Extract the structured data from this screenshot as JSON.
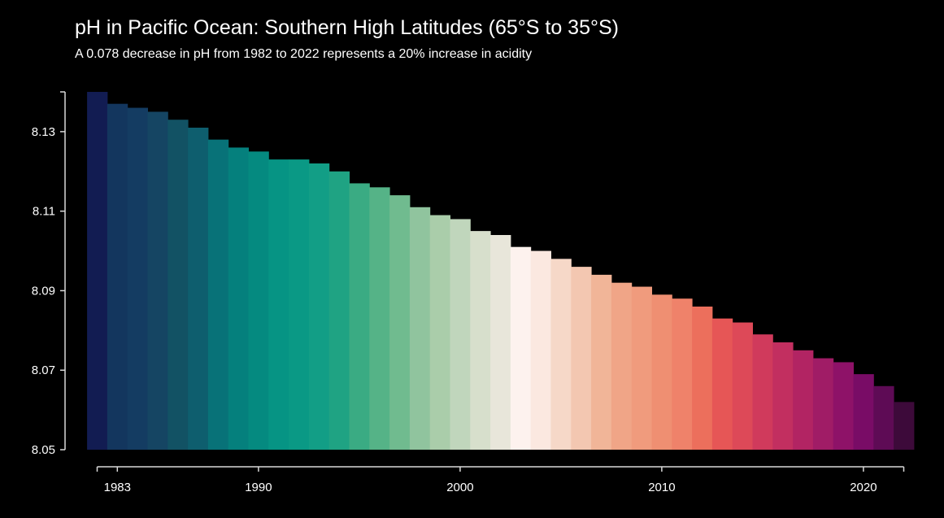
{
  "chart_data": {
    "type": "bar",
    "title": "pH in Pacific Ocean: Southern High Latitudes (65°S to 35°S)",
    "subtitle": "A 0.078 decrease in pH from 1982 to 2022 represents a 20% increase in acidity",
    "xlabel": "",
    "ylabel": "",
    "ylim": [
      8.05,
      8.14
    ],
    "xlim": [
      1982,
      2022
    ],
    "grid": false,
    "legend": "none",
    "yticks": [
      8.05,
      8.07,
      8.09,
      8.11,
      8.13
    ],
    "ytick_labels": [
      "8.05",
      "8.07",
      "8.09",
      "8.11",
      "8.13"
    ],
    "xticks": [
      1983,
      1990,
      2000,
      2010,
      2020
    ],
    "xtick_labels": [
      "1983",
      "1990",
      "2000",
      "2010",
      "2020"
    ],
    "categories": [
      1982,
      1983,
      1984,
      1985,
      1986,
      1987,
      1988,
      1989,
      1990,
      1991,
      1992,
      1993,
      1994,
      1995,
      1996,
      1997,
      1998,
      1999,
      2000,
      2001,
      2002,
      2003,
      2004,
      2005,
      2006,
      2007,
      2008,
      2009,
      2010,
      2011,
      2012,
      2013,
      2014,
      2015,
      2016,
      2017,
      2018,
      2019,
      2020,
      2021,
      2022
    ],
    "values": [
      8.14,
      8.137,
      8.136,
      8.135,
      8.133,
      8.131,
      8.128,
      8.126,
      8.125,
      8.123,
      8.123,
      8.122,
      8.12,
      8.117,
      8.116,
      8.114,
      8.111,
      8.109,
      8.108,
      8.105,
      8.104,
      8.101,
      8.1,
      8.098,
      8.096,
      8.094,
      8.092,
      8.091,
      8.089,
      8.088,
      8.086,
      8.083,
      8.082,
      8.079,
      8.077,
      8.075,
      8.073,
      8.072,
      8.069,
      8.066,
      8.062
    ],
    "colors": [
      "#121c52",
      "#13365e",
      "#143c62",
      "#154563",
      "#125264",
      "#0e5e6e",
      "#087278",
      "#05807d",
      "#058a80",
      "#069484",
      "#0a9985",
      "#129e86",
      "#1fa383",
      "#3aab83",
      "#55b387",
      "#70bb8f",
      "#90c49e",
      "#aacdaa",
      "#c0d6bc",
      "#d7dfcc",
      "#e8e6da",
      "#fdf2ee",
      "#fbe8e0",
      "#f6d8c8",
      "#f3c7b1",
      "#f1b598",
      "#f0a587",
      "#f09b7d",
      "#ef8f72",
      "#ef826a",
      "#ec6f5c",
      "#e65656",
      "#dd4958",
      "#d03a5c",
      "#c22f60",
      "#b22463",
      "#a01c66",
      "#8e1268",
      "#790c66",
      "#5e0b55",
      "#3d0a3a"
    ],
    "axis_color": "#d9d9d9"
  }
}
